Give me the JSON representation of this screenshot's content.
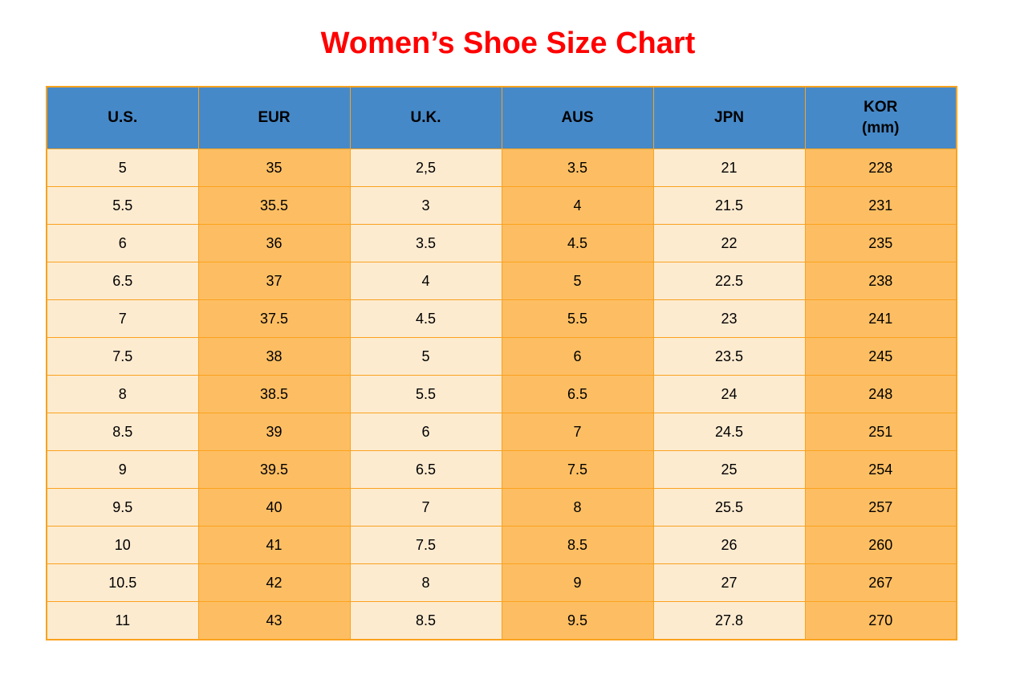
{
  "colors": {
    "title_text": "#ff0000",
    "header_bg": "#4689c8",
    "cell_light": "#fdebd0",
    "cell_orange": "#fdbe63",
    "grid_border": "#faa21e",
    "cell_text": "#000000"
  },
  "chart_data": {
    "type": "table",
    "title": "Women’s Shoe Size Chart",
    "columns": [
      {
        "key": "us",
        "label": "U.S.",
        "sublabel": "",
        "shade": "light"
      },
      {
        "key": "eur",
        "label": "EUR",
        "sublabel": "",
        "shade": "orange"
      },
      {
        "key": "uk",
        "label": "U.K.",
        "sublabel": "",
        "shade": "light"
      },
      {
        "key": "aus",
        "label": "AUS",
        "sublabel": "",
        "shade": "orange"
      },
      {
        "key": "jpn",
        "label": "JPN",
        "sublabel": "",
        "shade": "light"
      },
      {
        "key": "kor",
        "label": "KOR",
        "sublabel": "(mm)",
        "shade": "orange"
      }
    ],
    "rows": [
      [
        "5",
        "35",
        "2,5",
        "3.5",
        "21",
        "228"
      ],
      [
        "5.5",
        "35.5",
        "3",
        "4",
        "21.5",
        "231"
      ],
      [
        "6",
        "36",
        "3.5",
        "4.5",
        "22",
        "235"
      ],
      [
        "6.5",
        "37",
        "4",
        "5",
        "22.5",
        "238"
      ],
      [
        "7",
        "37.5",
        "4.5",
        "5.5",
        "23",
        "241"
      ],
      [
        "7.5",
        "38",
        "5",
        "6",
        "23.5",
        "245"
      ],
      [
        "8",
        "38.5",
        "5.5",
        "6.5",
        "24",
        "248"
      ],
      [
        "8.5",
        "39",
        "6",
        "7",
        "24.5",
        "251"
      ],
      [
        "9",
        "39.5",
        "6.5",
        "7.5",
        "25",
        "254"
      ],
      [
        "9.5",
        "40",
        "7",
        "8",
        "25.5",
        "257"
      ],
      [
        "10",
        "41",
        "7.5",
        "8.5",
        "26",
        "260"
      ],
      [
        "10.5",
        "42",
        "8",
        "9",
        "27",
        "267"
      ],
      [
        "11",
        "43",
        "8.5",
        "9.5",
        "27.8",
        "270"
      ]
    ]
  }
}
